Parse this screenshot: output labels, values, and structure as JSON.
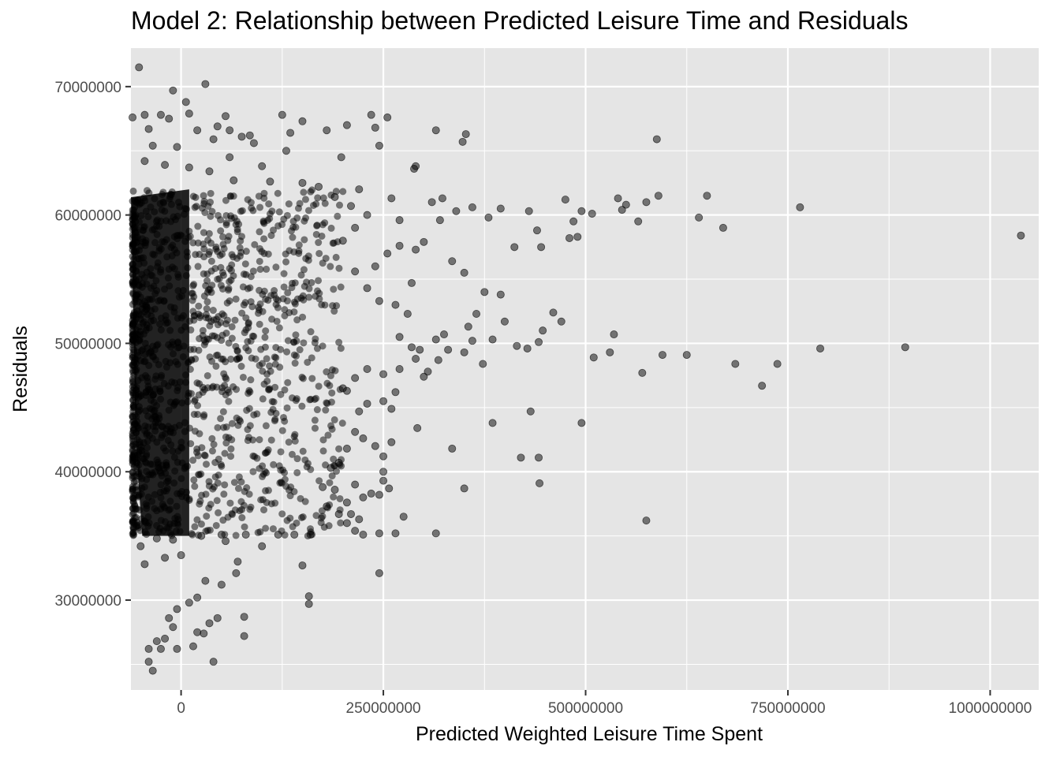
{
  "chart_data": {
    "type": "scatter",
    "title": "Model 2: Relationship between Predicted Leisure Time and Residuals",
    "xlabel": "Predicted Weighted Leisure Time Spent",
    "ylabel": "Residuals",
    "xlim": [
      -62000000,
      1060000000
    ],
    "ylim": [
      23000000,
      73000000
    ],
    "x_ticks": [
      0,
      250000000,
      500000000,
      750000000,
      1000000000
    ],
    "x_tick_labels": [
      "0",
      "250000000",
      "500000000",
      "750000000",
      "1000000000"
    ],
    "y_ticks": [
      30000000,
      40000000,
      50000000,
      60000000,
      70000000
    ],
    "y_tick_labels": [
      "30000000",
      "40000000",
      "50000000",
      "60000000",
      "70000000"
    ],
    "grid": true,
    "panel_background": "#e5e5e5",
    "grid_color": "#ffffff",
    "point_color": "#000000",
    "point_alpha": 0.5,
    "dense_band": {
      "x_range": [
        -60000000,
        200000000
      ],
      "y_range": [
        35000000,
        62000000
      ]
    },
    "points": [
      [
        -52000000,
        71500000
      ],
      [
        -10000000,
        69700000
      ],
      [
        6000000,
        68800000
      ],
      [
        30000000,
        70200000
      ],
      [
        -25000000,
        67800000
      ],
      [
        10000000,
        67900000
      ],
      [
        55000000,
        67700000
      ],
      [
        125000000,
        67800000
      ],
      [
        150000000,
        67300000
      ],
      [
        205000000,
        67000000
      ],
      [
        235000000,
        67800000
      ],
      [
        255000000,
        67600000
      ],
      [
        315000000,
        66600000
      ],
      [
        352000000,
        66300000
      ],
      [
        348000000,
        65700000
      ],
      [
        588000000,
        65900000
      ],
      [
        135000000,
        66400000
      ],
      [
        85000000,
        66200000
      ],
      [
        180000000,
        66600000
      ],
      [
        240000000,
        66800000
      ],
      [
        245000000,
        65400000
      ],
      [
        198000000,
        64500000
      ],
      [
        290000000,
        63800000
      ],
      [
        288000000,
        63600000
      ],
      [
        100000000,
        63800000
      ],
      [
        150000000,
        62500000
      ],
      [
        170000000,
        62200000
      ],
      [
        220000000,
        62000000
      ],
      [
        765000000,
        60600000
      ],
      [
        650000000,
        61500000
      ],
      [
        590000000,
        61500000
      ],
      [
        575000000,
        61000000
      ],
      [
        550000000,
        60800000
      ],
      [
        540000000,
        61300000
      ],
      [
        475000000,
        61200000
      ],
      [
        430000000,
        60300000
      ],
      [
        640000000,
        59800000
      ],
      [
        670000000,
        59000000
      ],
      [
        565000000,
        59500000
      ],
      [
        545000000,
        60400000
      ],
      [
        508000000,
        60100000
      ],
      [
        495000000,
        60300000
      ],
      [
        485000000,
        59500000
      ],
      [
        480000000,
        58200000
      ],
      [
        490000000,
        58300000
      ],
      [
        440000000,
        58800000
      ],
      [
        445000000,
        57500000
      ],
      [
        412000000,
        57500000
      ],
      [
        1038000000,
        58400000
      ],
      [
        395000000,
        60500000
      ],
      [
        380000000,
        59800000
      ],
      [
        360000000,
        60600000
      ],
      [
        340000000,
        60300000
      ],
      [
        320000000,
        59600000
      ],
      [
        300000000,
        57900000
      ],
      [
        290000000,
        57300000
      ],
      [
        270000000,
        57600000
      ],
      [
        255000000,
        57000000
      ],
      [
        335000000,
        56400000
      ],
      [
        350000000,
        55500000
      ],
      [
        375000000,
        54000000
      ],
      [
        395000000,
        53800000
      ],
      [
        365000000,
        52300000
      ],
      [
        355000000,
        51300000
      ],
      [
        460000000,
        52400000
      ],
      [
        470000000,
        51700000
      ],
      [
        447000000,
        51000000
      ],
      [
        442000000,
        50100000
      ],
      [
        400000000,
        51700000
      ],
      [
        385000000,
        50300000
      ],
      [
        360000000,
        50200000
      ],
      [
        350000000,
        49300000
      ],
      [
        330000000,
        49500000
      ],
      [
        318000000,
        48700000
      ],
      [
        305000000,
        47800000
      ],
      [
        300000000,
        47400000
      ],
      [
        535000000,
        50700000
      ],
      [
        530000000,
        49300000
      ],
      [
        510000000,
        48900000
      ],
      [
        595000000,
        49100000
      ],
      [
        625000000,
        49100000
      ],
      [
        570000000,
        47700000
      ],
      [
        685000000,
        48400000
      ],
      [
        718000000,
        46700000
      ],
      [
        737000000,
        48400000
      ],
      [
        790000000,
        49600000
      ],
      [
        895000000,
        49700000
      ],
      [
        415000000,
        49800000
      ],
      [
        428000000,
        49600000
      ],
      [
        373000000,
        48400000
      ],
      [
        265000000,
        46200000
      ],
      [
        250000000,
        45500000
      ],
      [
        230000000,
        45300000
      ],
      [
        220000000,
        44700000
      ],
      [
        260000000,
        44900000
      ],
      [
        432000000,
        44700000
      ],
      [
        495000000,
        43800000
      ],
      [
        385000000,
        43800000
      ],
      [
        292000000,
        43400000
      ],
      [
        260000000,
        42300000
      ],
      [
        240000000,
        42000000
      ],
      [
        250000000,
        41200000
      ],
      [
        335000000,
        41800000
      ],
      [
        420000000,
        41100000
      ],
      [
        442000000,
        41100000
      ],
      [
        443000000,
        39100000
      ],
      [
        350000000,
        38700000
      ],
      [
        257000000,
        38700000
      ],
      [
        250000000,
        39300000
      ],
      [
        250000000,
        40000000
      ],
      [
        235000000,
        38300000
      ],
      [
        245000000,
        38200000
      ],
      [
        275000000,
        36500000
      ],
      [
        575000000,
        36200000
      ],
      [
        315000000,
        35200000
      ],
      [
        265000000,
        35200000
      ],
      [
        245000000,
        35200000
      ],
      [
        225000000,
        35100000
      ],
      [
        215000000,
        35400000
      ],
      [
        205000000,
        36000000
      ],
      [
        195000000,
        36700000
      ],
      [
        180000000,
        37300000
      ],
      [
        160000000,
        35100000
      ],
      [
        140000000,
        35100000
      ],
      [
        120000000,
        35100000
      ],
      [
        100000000,
        34200000
      ],
      [
        245000000,
        32100000
      ],
      [
        150000000,
        32700000
      ],
      [
        158000000,
        30300000
      ],
      [
        158000000,
        29700000
      ],
      [
        70000000,
        33000000
      ],
      [
        68000000,
        32100000
      ],
      [
        50000000,
        31200000
      ],
      [
        30000000,
        31500000
      ],
      [
        20000000,
        30200000
      ],
      [
        10000000,
        29800000
      ],
      [
        -5000000,
        29300000
      ],
      [
        -15000000,
        28600000
      ],
      [
        78000000,
        28700000
      ],
      [
        78000000,
        27200000
      ],
      [
        45000000,
        28600000
      ],
      [
        35000000,
        28200000
      ],
      [
        28000000,
        27400000
      ],
      [
        20000000,
        27500000
      ],
      [
        -10000000,
        27900000
      ],
      [
        -20000000,
        27000000
      ],
      [
        -30000000,
        26800000
      ],
      [
        -40000000,
        26200000
      ],
      [
        -25000000,
        26200000
      ],
      [
        -5000000,
        26200000
      ],
      [
        15000000,
        26400000
      ],
      [
        -40000000,
        25200000
      ],
      [
        40000000,
        25200000
      ],
      [
        -35000000,
        24500000
      ],
      [
        -45000000,
        32800000
      ],
      [
        -20000000,
        33300000
      ],
      [
        0,
        33500000
      ],
      [
        -50000000,
        34200000
      ],
      [
        -30000000,
        34800000
      ],
      [
        -10000000,
        34700000
      ],
      [
        50000000,
        35100000
      ],
      [
        80000000,
        35100000
      ],
      [
        25000000,
        35000000
      ],
      [
        55000000,
        34600000
      ],
      [
        -60000000,
        67600000
      ],
      [
        -45000000,
        67800000
      ],
      [
        -40000000,
        66700000
      ],
      [
        -15000000,
        67500000
      ],
      [
        20000000,
        66600000
      ],
      [
        45000000,
        66900000
      ],
      [
        60000000,
        66600000
      ],
      [
        75000000,
        66100000
      ],
      [
        90000000,
        65600000
      ],
      [
        40000000,
        65900000
      ],
      [
        -35000000,
        65400000
      ],
      [
        -5000000,
        65300000
      ],
      [
        -45000000,
        64200000
      ],
      [
        -20000000,
        63900000
      ],
      [
        10000000,
        63700000
      ],
      [
        35000000,
        63400000
      ],
      [
        65000000,
        62700000
      ],
      [
        110000000,
        62600000
      ],
      [
        130000000,
        65000000
      ],
      [
        60000000,
        64500000
      ],
      [
        190000000,
        61400000
      ],
      [
        260000000,
        61300000
      ],
      [
        310000000,
        61000000
      ],
      [
        323000000,
        61300000
      ],
      [
        210000000,
        60700000
      ],
      [
        230000000,
        60000000
      ],
      [
        270000000,
        59600000
      ],
      [
        215000000,
        59000000
      ],
      [
        200000000,
        58000000
      ],
      [
        215000000,
        55600000
      ],
      [
        240000000,
        56000000
      ],
      [
        230000000,
        54300000
      ],
      [
        245000000,
        53300000
      ],
      [
        265000000,
        53000000
      ],
      [
        285000000,
        54700000
      ],
      [
        280000000,
        52300000
      ],
      [
        270000000,
        50500000
      ],
      [
        285000000,
        49700000
      ],
      [
        295000000,
        49500000
      ],
      [
        315000000,
        50300000
      ],
      [
        325000000,
        50700000
      ],
      [
        290000000,
        48800000
      ],
      [
        270000000,
        48000000
      ],
      [
        250000000,
        47600000
      ],
      [
        230000000,
        48000000
      ],
      [
        215000000,
        47300000
      ],
      [
        205000000,
        46300000
      ],
      [
        200000000,
        46500000
      ],
      [
        215000000,
        43100000
      ],
      [
        225000000,
        42600000
      ],
      [
        205000000,
        41800000
      ],
      [
        195000000,
        40700000
      ],
      [
        185000000,
        40300000
      ],
      [
        215000000,
        39000000
      ],
      [
        225000000,
        38000000
      ],
      [
        205000000,
        37600000
      ],
      [
        190000000,
        38600000
      ],
      [
        175000000,
        38800000
      ],
      [
        220000000,
        36300000
      ],
      [
        210000000,
        36700000
      ]
    ]
  }
}
